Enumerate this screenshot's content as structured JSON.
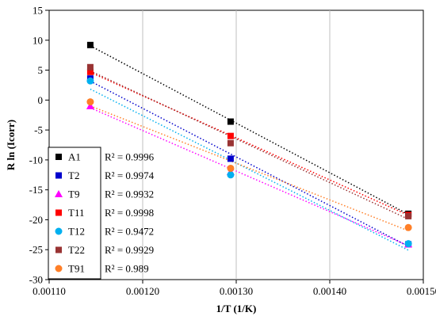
{
  "chart_data": {
    "type": "scatter",
    "xlabel": "1/T (1/K)",
    "ylabel": "R ln (Icorr)",
    "xlim": [
      0.0011,
      0.0015
    ],
    "ylim": [
      -30,
      15
    ],
    "xticks": [
      0.0011,
      0.0012,
      0.0013,
      0.0014,
      0.0015
    ],
    "xtick_labels": [
      "0.00110",
      "0.00120",
      "0.00130",
      "0.00140",
      "0.00150"
    ],
    "yticks": [
      -30,
      -25,
      -20,
      -15,
      -10,
      -5,
      0,
      5,
      10,
      15
    ],
    "ytick_labels": [
      "-30",
      "-25",
      "-20",
      "-15",
      "-10",
      "-5",
      "0",
      "5",
      "10",
      "15"
    ],
    "grid": {
      "vertical": true,
      "horizontal": false
    },
    "legend_position": "left-bottom",
    "trendlines": "dotted linear fit per series",
    "x": [
      0.001144,
      0.001294,
      0.001484
    ],
    "series": [
      {
        "name": "A1",
        "marker": "square",
        "color": "#000000",
        "values": [
          9.2,
          -3.6,
          -19.0
        ],
        "r2": "R² = 0.9996"
      },
      {
        "name": "T2",
        "marker": "square",
        "color": "#0000cc",
        "values": [
          3.6,
          -9.8,
          -24.1
        ],
        "r2": "R² = 0.9974"
      },
      {
        "name": "T9",
        "marker": "triangle",
        "color": "#ff00ff",
        "values": [
          -1.0,
          -12.0,
          -24.1
        ],
        "r2": "R² = 0.9932"
      },
      {
        "name": "T11",
        "marker": "square",
        "color": "#ff0000",
        "values": [
          4.7,
          -6.0,
          -19.2
        ],
        "r2": "R² = 0.9998"
      },
      {
        "name": "T12",
        "marker": "circle",
        "color": "#00b0f0",
        "values": [
          3.2,
          -12.5,
          -24.0
        ],
        "r2": "R² = 0.9472"
      },
      {
        "name": "T22",
        "marker": "square",
        "color": "#993333",
        "values": [
          5.5,
          -7.2,
          -19.4
        ],
        "r2": "R² = 0.9929"
      },
      {
        "name": "T91",
        "marker": "circle",
        "color": "#ff7f27",
        "values": [
          -0.3,
          -11.4,
          -21.3
        ],
        "r2": "R² = 0.989"
      }
    ]
  }
}
